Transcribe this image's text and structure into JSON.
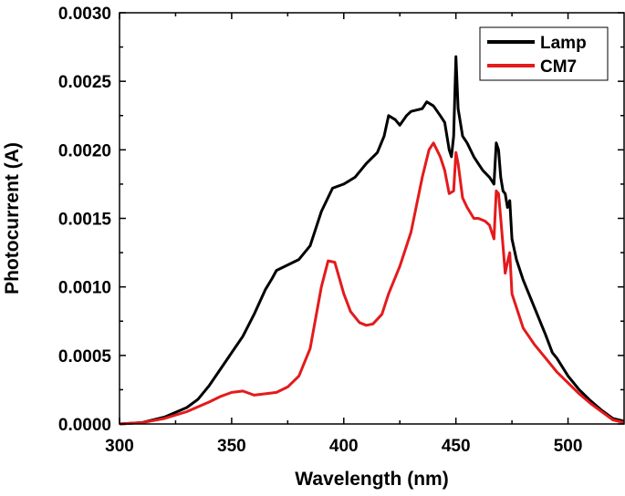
{
  "chart_data": {
    "type": "line",
    "title": "",
    "xlabel": "Wavelength (nm)",
    "ylabel": "Photocurrent (A)",
    "xlim": [
      300,
      525
    ],
    "ylim": [
      0,
      0.003
    ],
    "x_ticks": [
      300,
      350,
      400,
      450,
      500
    ],
    "y_ticks": [
      0.0,
      0.0005,
      0.001,
      0.0015,
      0.002,
      0.0025,
      0.003
    ],
    "x_tick_labels": [
      "300",
      "350",
      "400",
      "450",
      "500"
    ],
    "y_tick_labels": [
      "0.0000",
      "0.0005",
      "0.0010",
      "0.0015",
      "0.0020",
      "0.0025",
      "0.0030"
    ],
    "grid": false,
    "legend_position": "top-right",
    "colors": {
      "Lamp": "#000000",
      "CM7": "#e41a1c"
    },
    "series": [
      {
        "name": "Lamp",
        "points": [
          [
            300,
            0.0
          ],
          [
            310,
            1e-05
          ],
          [
            320,
            5e-05
          ],
          [
            330,
            0.00012
          ],
          [
            335,
            0.00018
          ],
          [
            340,
            0.00028
          ],
          [
            345,
            0.0004
          ],
          [
            350,
            0.00052
          ],
          [
            355,
            0.00064
          ],
          [
            360,
            0.0008
          ],
          [
            365,
            0.00098
          ],
          [
            368,
            0.00106
          ],
          [
            370,
            0.00112
          ],
          [
            375,
            0.00116
          ],
          [
            380,
            0.0012
          ],
          [
            385,
            0.0013
          ],
          [
            390,
            0.00155
          ],
          [
            395,
            0.00172
          ],
          [
            400,
            0.00175
          ],
          [
            405,
            0.0018
          ],
          [
            410,
            0.0019
          ],
          [
            415,
            0.00198
          ],
          [
            418,
            0.0021
          ],
          [
            420,
            0.00225
          ],
          [
            423,
            0.00222
          ],
          [
            425,
            0.00218
          ],
          [
            428,
            0.00225
          ],
          [
            430,
            0.00228
          ],
          [
            435,
            0.0023
          ],
          [
            437,
            0.00235
          ],
          [
            440,
            0.00232
          ],
          [
            443,
            0.00225
          ],
          [
            445,
            0.0022
          ],
          [
            447,
            0.002
          ],
          [
            448,
            0.00195
          ],
          [
            449,
            0.0021
          ],
          [
            450,
            0.00268
          ],
          [
            451,
            0.0023
          ],
          [
            453,
            0.0021
          ],
          [
            455,
            0.00205
          ],
          [
            458,
            0.00195
          ],
          [
            460,
            0.0019
          ],
          [
            462,
            0.00185
          ],
          [
            465,
            0.0018
          ],
          [
            467,
            0.00175
          ],
          [
            468,
            0.00205
          ],
          [
            469,
            0.002
          ],
          [
            470,
            0.0018
          ],
          [
            471,
            0.0017
          ],
          [
            472,
            0.00168
          ],
          [
            473,
            0.00158
          ],
          [
            474,
            0.00163
          ],
          [
            475,
            0.00135
          ],
          [
            477,
            0.0012
          ],
          [
            480,
            0.00105
          ],
          [
            485,
            0.00085
          ],
          [
            490,
            0.00065
          ],
          [
            493,
            0.00052
          ],
          [
            495,
            0.00048
          ],
          [
            500,
            0.00035
          ],
          [
            505,
            0.00025
          ],
          [
            510,
            0.00017
          ],
          [
            515,
            0.0001
          ],
          [
            520,
            4e-05
          ],
          [
            525,
            2e-05
          ]
        ]
      },
      {
        "name": "CM7",
        "points": [
          [
            300,
            0.0
          ],
          [
            310,
            1e-05
          ],
          [
            320,
            4e-05
          ],
          [
            330,
            9e-05
          ],
          [
            340,
            0.00016
          ],
          [
            345,
            0.0002
          ],
          [
            350,
            0.00023
          ],
          [
            355,
            0.00024
          ],
          [
            360,
            0.00021
          ],
          [
            365,
            0.00022
          ],
          [
            370,
            0.00023
          ],
          [
            375,
            0.00027
          ],
          [
            380,
            0.00035
          ],
          [
            385,
            0.00055
          ],
          [
            390,
            0.001
          ],
          [
            393,
            0.00119
          ],
          [
            396,
            0.00118
          ],
          [
            400,
            0.00095
          ],
          [
            403,
            0.00082
          ],
          [
            407,
            0.00074
          ],
          [
            410,
            0.00072
          ],
          [
            413,
            0.00073
          ],
          [
            417,
            0.0008
          ],
          [
            420,
            0.00095
          ],
          [
            425,
            0.00115
          ],
          [
            430,
            0.0014
          ],
          [
            435,
            0.0018
          ],
          [
            438,
            0.002
          ],
          [
            440,
            0.00205
          ],
          [
            443,
            0.00195
          ],
          [
            445,
            0.00185
          ],
          [
            447,
            0.00168
          ],
          [
            449,
            0.0017
          ],
          [
            450,
            0.00198
          ],
          [
            451,
            0.0019
          ],
          [
            453,
            0.00165
          ],
          [
            455,
            0.00158
          ],
          [
            458,
            0.0015
          ],
          [
            460,
            0.0015
          ],
          [
            463,
            0.00148
          ],
          [
            465,
            0.00145
          ],
          [
            467,
            0.00135
          ],
          [
            468,
            0.0017
          ],
          [
            469,
            0.00168
          ],
          [
            470,
            0.0015
          ],
          [
            471,
            0.0013
          ],
          [
            472,
            0.0011
          ],
          [
            473,
            0.00118
          ],
          [
            474,
            0.00125
          ],
          [
            475,
            0.00095
          ],
          [
            477,
            0.00085
          ],
          [
            480,
            0.0007
          ],
          [
            485,
            0.00058
          ],
          [
            490,
            0.00048
          ],
          [
            495,
            0.00038
          ],
          [
            500,
            0.0003
          ],
          [
            505,
            0.00022
          ],
          [
            510,
            0.00015
          ],
          [
            515,
            9e-05
          ],
          [
            520,
            3e-05
          ],
          [
            525,
            1e-05
          ]
        ]
      }
    ]
  }
}
